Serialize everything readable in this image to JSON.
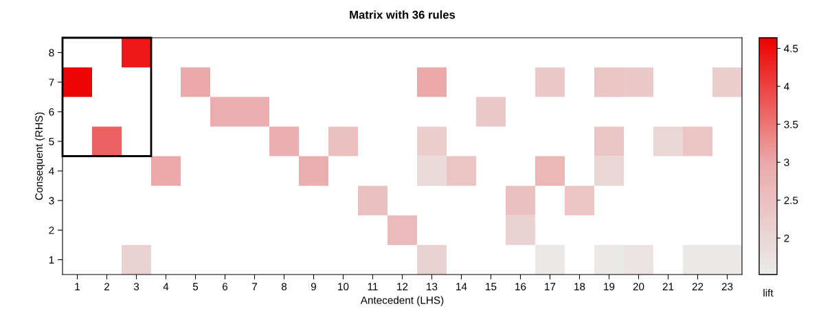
{
  "chart_data": {
    "type": "heatmap",
    "title": "Matrix with 36 rules",
    "xlabel": "Antecedent (LHS)",
    "ylabel": "Consequent (RHS)",
    "clabel": "lift",
    "categories": [
      "1",
      "2",
      "3",
      "4",
      "5",
      "6",
      "7",
      "8",
      "9",
      "10",
      "11",
      "12",
      "13",
      "14",
      "15",
      "16",
      "17",
      "18",
      "19",
      "20",
      "21",
      "22",
      "23"
    ],
    "y_categories": [
      "8",
      "7",
      "6",
      "5",
      "4",
      "3",
      "2",
      "1"
    ],
    "cells": [
      [
        null,
        null,
        4.4,
        null,
        null,
        null,
        null,
        null,
        null,
        null,
        null,
        null,
        null,
        null,
        null,
        null,
        null,
        null,
        null,
        null,
        null,
        null,
        null
      ],
      [
        4.6,
        null,
        null,
        null,
        3.0,
        null,
        null,
        null,
        null,
        null,
        null,
        null,
        3.0,
        null,
        null,
        null,
        2.3,
        null,
        2.4,
        2.3,
        null,
        null,
        2.2
      ],
      [
        null,
        null,
        null,
        null,
        null,
        2.9,
        2.9,
        null,
        null,
        null,
        null,
        null,
        null,
        null,
        2.3,
        null,
        null,
        null,
        null,
        null,
        null,
        null,
        null
      ],
      [
        null,
        3.7,
        null,
        null,
        null,
        null,
        null,
        2.9,
        null,
        2.5,
        null,
        null,
        2.2,
        null,
        null,
        null,
        null,
        null,
        2.4,
        null,
        2.0,
        2.4,
        null
      ],
      [
        null,
        null,
        null,
        3.0,
        null,
        null,
        null,
        null,
        2.9,
        null,
        null,
        null,
        1.9,
        2.4,
        null,
        null,
        2.7,
        null,
        2.0,
        null,
        null,
        null,
        null
      ],
      [
        null,
        null,
        null,
        null,
        null,
        null,
        null,
        null,
        null,
        null,
        2.5,
        null,
        null,
        null,
        null,
        2.5,
        null,
        2.4,
        null,
        null,
        null,
        null,
        null
      ],
      [
        null,
        null,
        null,
        null,
        null,
        null,
        null,
        null,
        null,
        null,
        null,
        2.6,
        null,
        null,
        null,
        2.1,
        null,
        null,
        null,
        null,
        null,
        null,
        null
      ],
      [
        null,
        null,
        2.1,
        null,
        null,
        null,
        null,
        null,
        null,
        null,
        null,
        null,
        2.1,
        null,
        null,
        null,
        1.6,
        null,
        1.6,
        1.7,
        null,
        1.6,
        1.6
      ]
    ],
    "clim": [
      1.52,
      4.64
    ],
    "cticks": [
      2,
      2.5,
      3,
      3.5,
      4,
      4.5
    ],
    "grid": false
  }
}
